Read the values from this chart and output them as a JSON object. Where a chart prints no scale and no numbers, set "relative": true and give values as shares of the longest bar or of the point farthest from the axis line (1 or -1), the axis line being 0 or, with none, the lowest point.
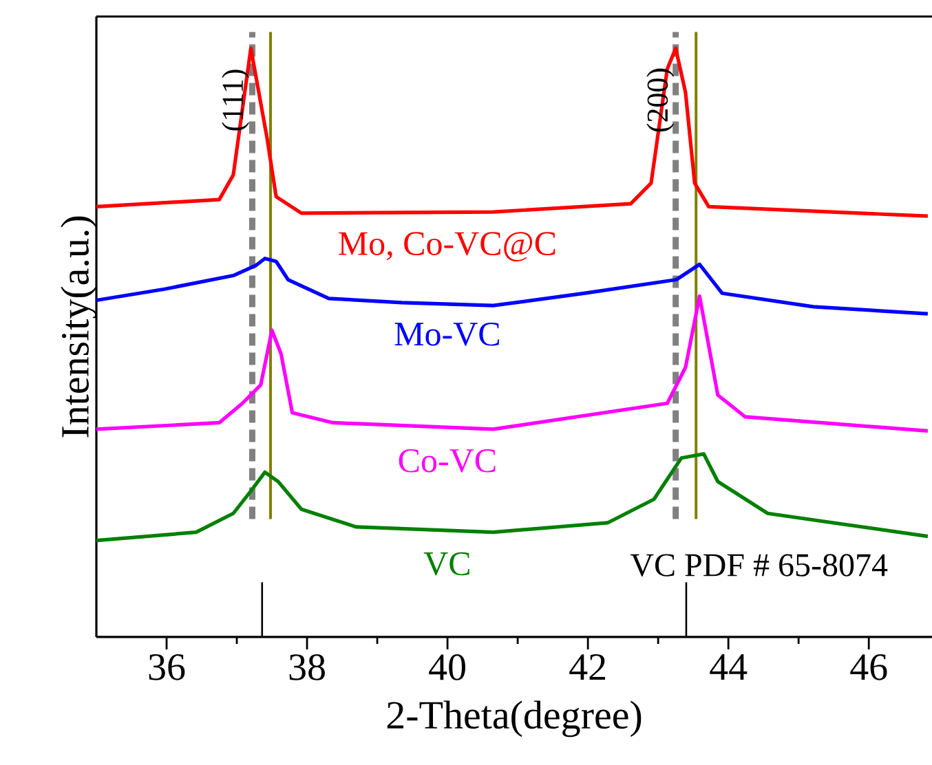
{
  "chart_data": {
    "type": "line",
    "relative": true,
    "xlabel": "2-Theta(degree)",
    "ylabel": "Intensity(a.u.)",
    "xlim": [
      35,
      46.9
    ],
    "xticks": [
      36,
      {
        "value": 37,
        "label": null
      },
      38,
      {
        "value": 39,
        "label": null
      },
      40,
      {
        "value": 41,
        "label": null
      },
      42,
      {
        "value": 43,
        "label": null
      },
      44,
      {
        "value": 45,
        "label": null
      },
      46
    ],
    "series": [
      {
        "name": "Mo, Co-VC@C",
        "color": "#ff0000",
        "x": [
          35.0,
          36.75,
          36.95,
          37.2,
          37.43,
          37.56,
          37.92,
          40.65,
          42.61,
          42.9,
          43.13,
          43.25,
          43.39,
          43.52,
          43.72,
          46.84
        ],
        "values": [
          0.731,
          0.743,
          0.785,
          1.0,
          0.848,
          0.748,
          0.72,
          0.722,
          0.736,
          0.771,
          0.965,
          1.0,
          0.925,
          0.771,
          0.731,
          0.715
        ]
      },
      {
        "name": "Mo-VC",
        "color": "#0000ff",
        "x": [
          35.0,
          35.97,
          36.95,
          37.27,
          37.4,
          37.56,
          37.73,
          38.31,
          39.35,
          40.65,
          41.96,
          43.26,
          43.59,
          43.91,
          45.21,
          46.84
        ],
        "values": [
          0.572,
          0.591,
          0.614,
          0.631,
          0.643,
          0.638,
          0.607,
          0.575,
          0.568,
          0.563,
          0.584,
          0.607,
          0.633,
          0.584,
          0.561,
          0.549
        ]
      },
      {
        "name": "Co-VC",
        "color": "#ff00ff",
        "x": [
          35.0,
          36.75,
          37.08,
          37.34,
          37.5,
          37.63,
          37.79,
          38.37,
          40.65,
          43.13,
          43.39,
          43.59,
          43.85,
          44.24,
          46.84
        ],
        "values": [
          0.353,
          0.364,
          0.397,
          0.428,
          0.521,
          0.481,
          0.381,
          0.364,
          0.353,
          0.397,
          0.458,
          0.579,
          0.411,
          0.374,
          0.35
        ]
      },
      {
        "name": "VC",
        "color": "#008000",
        "x": [
          35.0,
          36.42,
          36.95,
          37.2,
          37.4,
          37.59,
          37.92,
          38.7,
          40.65,
          42.28,
          42.94,
          43.33,
          43.65,
          43.85,
          44.56,
          46.84
        ],
        "values": [
          0.164,
          0.178,
          0.21,
          0.248,
          0.28,
          0.264,
          0.217,
          0.187,
          0.178,
          0.194,
          0.234,
          0.304,
          0.311,
          0.264,
          0.21,
          0.171
        ]
      },
      {
        "name": "VC PDF # 65-8074",
        "type": "bar",
        "color": "#000000",
        "x": [
          37.36,
          43.4
        ],
        "values": [
          0.093,
          0.093
        ]
      }
    ],
    "ref_lines": [
      {
        "axis": "x",
        "value": 37.22,
        "color": "#808080",
        "line_style": "dashed"
      },
      {
        "axis": "x",
        "value": 43.25,
        "color": "#808080",
        "line_style": "dashed"
      },
      {
        "axis": "x",
        "value": 37.48,
        "color": "#808000",
        "line_style": "solid"
      },
      {
        "axis": "x",
        "value": 43.54,
        "color": "#808000",
        "line_style": "solid"
      }
    ],
    "annotations": [
      {
        "text": "(111)",
        "x": 37.2,
        "y": 0.94
      },
      {
        "text": "(200)",
        "x": 43.25,
        "y": 0.94
      }
    ]
  }
}
